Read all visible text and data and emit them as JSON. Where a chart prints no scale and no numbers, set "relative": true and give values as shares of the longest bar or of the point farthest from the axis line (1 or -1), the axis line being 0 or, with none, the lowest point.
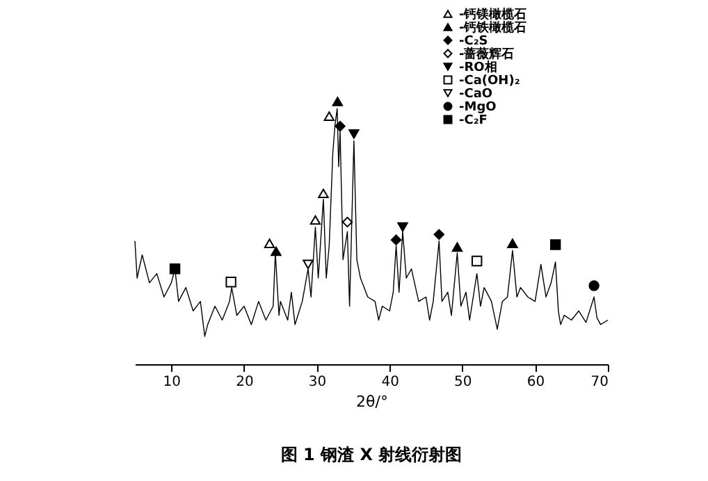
{
  "chart_data": {
    "type": "line",
    "title": "图 1 钢渣 X 射线衍射图",
    "xlabel": "2θ/°",
    "relative": true,
    "xlim": [
      5,
      70
    ],
    "xticks": [
      10,
      20,
      30,
      40,
      50,
      60,
      70
    ],
    "legend": "top right",
    "grid": false,
    "series": [
      {
        "color": "#000000",
        "x": [
          5,
          5.3,
          6,
          7,
          8,
          9,
          10,
          10.5,
          11,
          12,
          13,
          14,
          14.6,
          15,
          16,
          17,
          18,
          18.3,
          19,
          20,
          21,
          22,
          23,
          24,
          24.3,
          24.8,
          25,
          26,
          26.5,
          27,
          28,
          28.8,
          29.2,
          29.8,
          30.2,
          30.9,
          31.3,
          31.7,
          32.2,
          32.5,
          32.8,
          33.0,
          33.2,
          33.6,
          34.2,
          34.5,
          35.1,
          35.5,
          36,
          37,
          38,
          38.5,
          39,
          40,
          40.5,
          40.9,
          41.3,
          41.8,
          42.3,
          43,
          44,
          45,
          45.5,
          46,
          46.8,
          47.2,
          48,
          48.5,
          49.3,
          49.8,
          50.5,
          51,
          52,
          52.5,
          53,
          54,
          54.8,
          55.5,
          56.2,
          56.9,
          57.5,
          58,
          59,
          60,
          60.8,
          61.5,
          62.2,
          62.8,
          63.2,
          63.5,
          64,
          65,
          66,
          67,
          68.1,
          68.5,
          69,
          70
        ],
        "values": [
          0.469,
          0.328,
          0.416,
          0.31,
          0.345,
          0.256,
          0.31,
          0.363,
          0.239,
          0.292,
          0.203,
          0.239,
          0.106,
          0.151,
          0.221,
          0.168,
          0.239,
          0.292,
          0.186,
          0.221,
          0.151,
          0.239,
          0.168,
          0.221,
          0.424,
          0.186,
          0.239,
          0.168,
          0.274,
          0.151,
          0.239,
          0.363,
          0.256,
          0.522,
          0.328,
          0.628,
          0.328,
          0.451,
          0.805,
          0.911,
          0.973,
          0.752,
          0.885,
          0.398,
          0.505,
          0.221,
          0.85,
          0.398,
          0.328,
          0.256,
          0.239,
          0.168,
          0.221,
          0.203,
          0.274,
          0.451,
          0.274,
          0.505,
          0.328,
          0.363,
          0.239,
          0.256,
          0.168,
          0.239,
          0.469,
          0.239,
          0.274,
          0.186,
          0.424,
          0.221,
          0.274,
          0.168,
          0.345,
          0.221,
          0.292,
          0.239,
          0.133,
          0.239,
          0.256,
          0.433,
          0.256,
          0.292,
          0.256,
          0.239,
          0.38,
          0.256,
          0.31,
          0.389,
          0.203,
          0.151,
          0.186,
          0.168,
          0.203,
          0.159,
          0.256,
          0.177,
          0.151,
          0.168
        ]
      },
      {
        "type": "scatter",
        "name": "-钙镁橄榄石",
        "color": "#000000",
        "marker": "triangle-open",
        "x": [
          31.7,
          30.9,
          29.8,
          23.5
        ],
        "values": [
          0.944,
          0.65,
          0.549,
          0.46
        ]
      },
      {
        "type": "scatter",
        "name": "-钙铁橄榄石",
        "color": "#000000",
        "marker": "triangle",
        "x": [
          32.85,
          24.4,
          49.3,
          56.9
        ],
        "values": [
          1.0,
          0.43,
          0.446,
          0.46
        ]
      },
      {
        "type": "scatter",
        "name": "-C₂S",
        "color": "#000000",
        "marker": "diamond",
        "x": [
          33.2,
          40.9,
          46.8
        ],
        "values": [
          0.906,
          0.473,
          0.494
        ]
      },
      {
        "type": "scatter",
        "name": "-蔷薇辉石",
        "color": "#000000",
        "marker": "diamond-open",
        "x": [
          34.2
        ],
        "values": [
          0.541
        ]
      },
      {
        "type": "scatter",
        "name": "-RO相",
        "color": "#000000",
        "marker": "triangle-down",
        "x": [
          35.1,
          41.8
        ],
        "values": [
          0.876,
          0.522
        ]
      },
      {
        "type": "scatter",
        "name": "-Ca(OH)₂",
        "color": "#000000",
        "marker": "square-open",
        "x": [
          18.2,
          52.0
        ],
        "values": [
          0.313,
          0.393
        ]
      },
      {
        "type": "scatter",
        "name": "-CaO",
        "color": "#000000",
        "marker": "triangle-down-open",
        "x": [
          28.8
        ],
        "values": [
          0.38
        ]
      },
      {
        "type": "scatter",
        "name": "-MgO",
        "color": "#000000",
        "marker": "circle",
        "x": [
          68.1
        ],
        "values": [
          0.299
        ]
      },
      {
        "type": "scatter",
        "name": "-C₂F",
        "color": "#000000",
        "marker": "square",
        "x": [
          10.5,
          62.8
        ],
        "values": [
          0.363,
          0.455
        ]
      }
    ]
  }
}
